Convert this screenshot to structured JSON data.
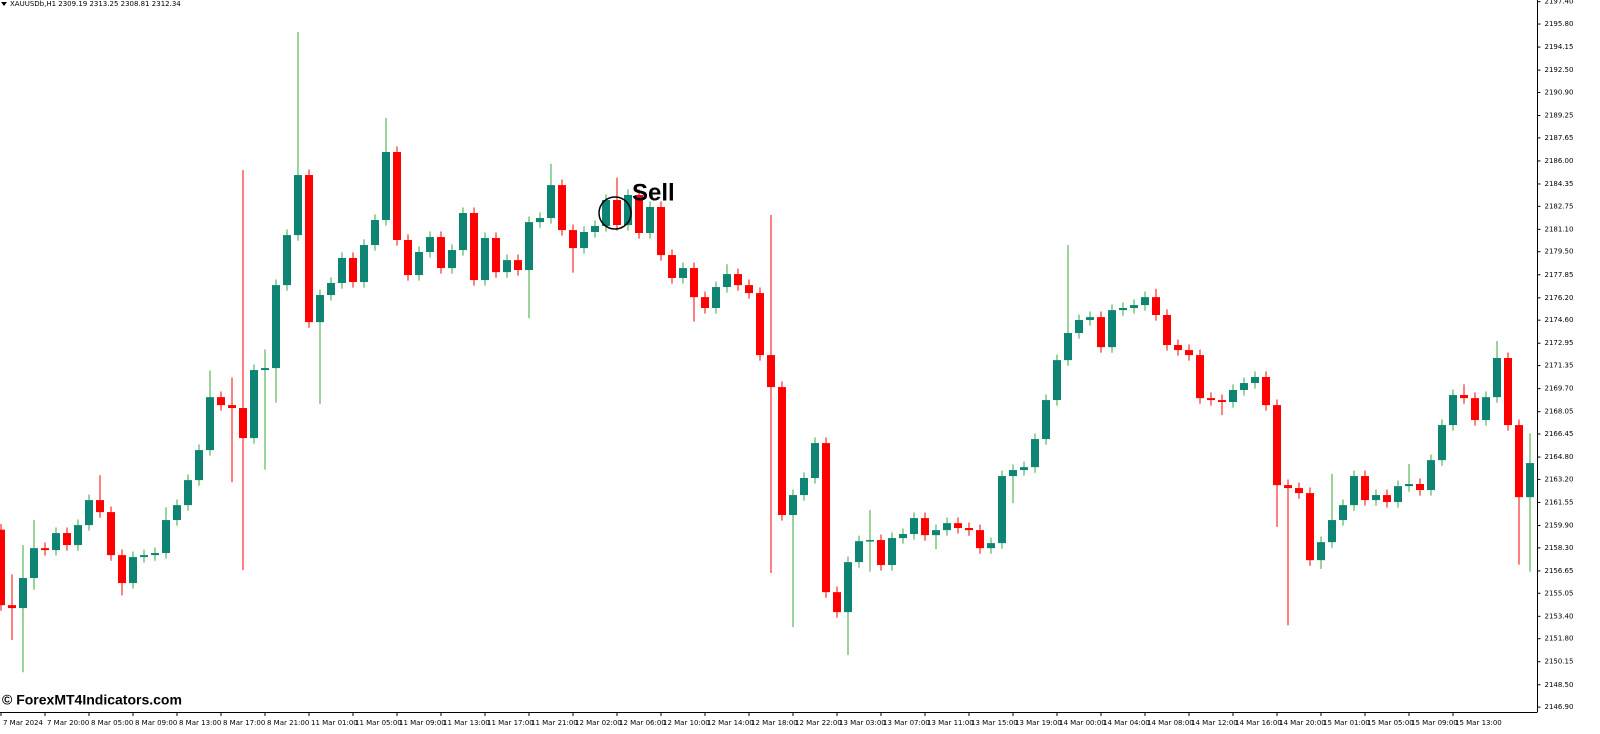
{
  "chart_data": {
    "type": "candlestick",
    "title": "XAUUSDb,H1  2309.19 2313.25 2308.81 2312.34",
    "annotation": "Sell",
    "watermark": "© ForexMT4Indicators.com",
    "up_color": "#0e8474",
    "up_wick_color": "#35a83a",
    "down_color": "#ff0000",
    "categories": [
      "7 Mar 2024",
      null,
      null,
      null,
      "7 Mar 20:00",
      null,
      null,
      null,
      "8 Mar 05:00",
      null,
      null,
      null,
      "8 Mar 09:00",
      null,
      null,
      null,
      "8 Mar 13:00",
      null,
      null,
      null,
      "8 Mar 17:00",
      null,
      null,
      null,
      "8 Mar 21:00",
      null,
      null,
      null,
      "11 Mar 01:00",
      null,
      null,
      null,
      "11 Mar 05:00",
      null,
      null,
      null,
      "11 Mar 09:00",
      null,
      null,
      null,
      "11 Mar 13:00",
      null,
      null,
      null,
      "11 Mar 17:00",
      null,
      null,
      null,
      "11 Mar 21:00",
      null,
      null,
      null,
      "12 Mar 02:00",
      null,
      null,
      null,
      "12 Mar 06:00",
      null,
      null,
      null,
      "12 Mar 10:00",
      null,
      null,
      null,
      "12 Mar 14:00",
      null,
      null,
      null,
      "12 Mar 18:00",
      null,
      null,
      null,
      "12 Mar 22:00",
      null,
      null,
      null,
      "13 Mar 03:00",
      null,
      null,
      null,
      "13 Mar 07:00",
      null,
      null,
      null,
      "13 Mar 11:00",
      null,
      null,
      null,
      "13 Mar 15:00",
      null,
      null,
      null,
      "13 Mar 19:00",
      null,
      null,
      null,
      "14 Mar 00:00",
      null,
      null,
      null,
      "14 Mar 04:00",
      null,
      null,
      null,
      "14 Mar 08:00",
      null,
      null,
      null,
      "14 Mar 12:00",
      null,
      null,
      null,
      "14 Mar 16:00",
      null,
      null,
      null,
      "14 Mar 20:00",
      null,
      null,
      null,
      "15 Mar 01:00",
      null,
      null,
      null,
      "15 Mar 05:00",
      null,
      null,
      null,
      "15 Mar 09:00",
      null,
      null,
      null,
      "15 Mar 13:00",
      null,
      null,
      null,
      null,
      null,
      null,
      null
    ],
    "open": [
      2159.6,
      2154.2,
      2153.99,
      2156.14,
      2158.28,
      2158.14,
      2159.36,
      2158.5,
      2159.93,
      2161.72,
      2160.86,
      2157.78,
      2155.78,
      2157.64,
      2157.78,
      2157.93,
      2160.29,
      2161.36,
      2163.15,
      2165.3,
      2169.09,
      2168.52,
      2168.31,
      2166.16,
      2171.03,
      2171.17,
      2177.11,
      2180.69,
      2184.99,
      2174.46,
      2176.4,
      2177.26,
      2179.05,
      2177.33,
      2179.98,
      2181.77,
      2186.64,
      2180.34,
      2177.83,
      2179.48,
      2180.55,
      2178.33,
      2179.62,
      2182.27,
      2177.47,
      2180.48,
      2178.04,
      2178.9,
      2178.19,
      2181.62,
      2181.91,
      2184.27,
      2181.05,
      2179.76,
      2180.91,
      2181.34,
      2183.2,
      2181.41,
      2183.56,
      2180.84,
      2182.7,
      2179.26,
      2177.62,
      2178.33,
      2176.25,
      2175.47,
      2176.97,
      2177.9,
      2177.11,
      2176.54,
      2172.1,
      2169.81,
      2160.65,
      2162.08,
      2163.3,
      2165.8,
      2155.13,
      2153.7,
      2157.28,
      2158.78,
      2158.86,
      2157.07,
      2159.0,
      2159.29,
      2160.43,
      2159.21,
      2159.57,
      2160.07,
      2159.72,
      2159.57,
      2158.28,
      2158.64,
      2163.44,
      2163.87,
      2164.08,
      2166.09,
      2168.88,
      2171.74,
      2173.68,
      2174.61,
      2174.82,
      2172.67,
      2175.32,
      2175.47,
      2175.68,
      2176.25,
      2174.97,
      2172.82,
      2172.46,
      2172.1,
      2169.02,
      2168.88,
      2168.74,
      2169.6,
      2170.1,
      2170.53,
      2168.52,
      2162.79,
      2162.58,
      2162.22,
      2157.42,
      2158.71,
      2160.29,
      2161.36,
      2163.44,
      2161.72,
      2162.08,
      2161.58,
      2162.72,
      2162.87,
      2162.44,
      2164.58,
      2167.09,
      2169.24,
      2169.02,
      2167.45,
      2169.09,
      2171.89,
      2167.09,
      2161.93
    ],
    "high": [
      2160.0,
      2156.4,
      2158.5,
      2160.3,
      2158.68,
      2159.76,
      2159.76,
      2160.33,
      2162.12,
      2163.5,
      2161.26,
      2158.18,
      2158.04,
      2158.18,
      2158.33,
      2161.2,
      2161.76,
      2163.55,
      2165.7,
      2171.0,
      2169.49,
      2170.5,
      2185.35,
      2171.43,
      2172.5,
      2177.51,
      2181.09,
      2195.23,
      2185.39,
      2176.8,
      2177.66,
      2179.45,
      2179.45,
      2180.38,
      2182.17,
      2189.07,
      2187.04,
      2180.74,
      2179.88,
      2180.95,
      2180.95,
      2180.02,
      2182.67,
      2182.67,
      2180.88,
      2180.88,
      2179.3,
      2179.3,
      2182.02,
      2182.31,
      2185.8,
      2184.67,
      2181.45,
      2181.31,
      2181.74,
      2183.6,
      2184.8,
      2183.96,
      2183.96,
      2183.1,
      2183.1,
      2179.66,
      2178.73,
      2178.73,
      2176.65,
      2177.37,
      2178.6,
      2178.3,
      2177.51,
      2176.94,
      2182.13,
      2170.21,
      2162.48,
      2163.7,
      2166.2,
      2166.2,
      2155.53,
      2157.68,
      2159.18,
      2161.0,
      2159.26,
      2159.4,
      2159.69,
      2160.83,
      2160.83,
      2159.97,
      2160.47,
      2160.47,
      2160.12,
      2159.97,
      2159.04,
      2163.84,
      2164.27,
      2164.48,
      2166.49,
      2169.28,
      2172.14,
      2179.98,
      2175.01,
      2175.22,
      2175.22,
      2175.72,
      2175.87,
      2176.08,
      2176.65,
      2176.85,
      2175.37,
      2173.22,
      2172.86,
      2172.5,
      2169.42,
      2169.28,
      2170.0,
      2170.5,
      2170.93,
      2170.93,
      2168.92,
      2163.19,
      2162.98,
      2162.62,
      2159.11,
      2163.6,
      2161.76,
      2163.84,
      2163.84,
      2162.48,
      2162.48,
      2163.12,
      2164.3,
      2163.27,
      2164.98,
      2167.49,
      2169.64,
      2170.0,
      2169.42,
      2169.49,
      2173.1,
      2172.29,
      2167.49,
      2166.5
    ],
    "low": [
      2153.8,
      2151.7,
      2149.4,
      2155.3,
      2157.74,
      2157.74,
      2158.1,
      2158.1,
      2159.53,
      2160.46,
      2157.38,
      2154.9,
      2155.38,
      2157.24,
      2157.38,
      2157.53,
      2159.89,
      2160.96,
      2162.75,
      2164.9,
      2168.12,
      2163.0,
      2156.71,
      2165.76,
      2163.9,
      2168.7,
      2176.71,
      2180.29,
      2174.06,
      2168.6,
      2176.0,
      2176.86,
      2176.93,
      2176.93,
      2179.58,
      2181.37,
      2179.94,
      2177.43,
      2177.43,
      2179.08,
      2177.93,
      2177.93,
      2179.22,
      2177.07,
      2177.07,
      2177.64,
      2177.64,
      2177.79,
      2174.75,
      2181.22,
      2181.51,
      2180.65,
      2178.0,
      2179.36,
      2180.51,
      2180.94,
      2181.01,
      2181.01,
      2180.44,
      2180.44,
      2178.86,
      2177.22,
      2177.22,
      2174.5,
      2175.07,
      2175.07,
      2176.57,
      2176.71,
      2176.14,
      2171.7,
      2156.5,
      2160.25,
      2152.63,
      2161.68,
      2162.9,
      2154.73,
      2153.3,
      2150.62,
      2156.88,
      2156.6,
      2156.67,
      2156.67,
      2158.6,
      2158.89,
      2158.81,
      2158.2,
      2159.17,
      2159.32,
      2159.17,
      2157.88,
      2157.88,
      2158.24,
      2161.5,
      2163.47,
      2163.68,
      2165.69,
      2168.48,
      2171.34,
      2173.28,
      2174.21,
      2172.27,
      2172.27,
      2174.92,
      2175.07,
      2175.28,
      2174.57,
      2172.42,
      2172.06,
      2171.7,
      2168.62,
      2168.48,
      2167.8,
      2168.34,
      2169.2,
      2169.7,
      2168.12,
      2159.8,
      2152.77,
      2161.82,
      2157.02,
      2156.8,
      2158.31,
      2159.89,
      2160.96,
      2161.32,
      2161.32,
      2161.18,
      2161.18,
      2162.32,
      2162.04,
      2162.04,
      2164.18,
      2166.69,
      2168.62,
      2167.05,
      2167.05,
      2168.69,
      2166.69,
      2157.1,
      2156.6
    ],
    "close": [
      2154.2,
      2153.99,
      2156.14,
      2158.28,
      2158.14,
      2159.36,
      2158.5,
      2159.93,
      2161.72,
      2160.86,
      2157.78,
      2155.78,
      2157.64,
      2157.78,
      2157.93,
      2160.29,
      2161.36,
      2163.15,
      2165.3,
      2169.09,
      2168.52,
      2168.31,
      2166.16,
      2171.03,
      2171.17,
      2177.11,
      2180.69,
      2184.99,
      2174.46,
      2176.4,
      2177.26,
      2179.05,
      2177.33,
      2179.98,
      2181.77,
      2186.64,
      2180.34,
      2177.83,
      2179.48,
      2180.55,
      2178.33,
      2179.62,
      2182.27,
      2177.47,
      2180.48,
      2178.04,
      2178.9,
      2178.19,
      2181.62,
      2181.91,
      2184.27,
      2181.05,
      2179.76,
      2180.91,
      2181.34,
      2183.2,
      2181.41,
      2183.56,
      2180.84,
      2182.7,
      2179.26,
      2177.62,
      2178.33,
      2176.25,
      2175.47,
      2176.97,
      2177.9,
      2177.11,
      2176.54,
      2172.1,
      2169.81,
      2160.65,
      2162.08,
      2163.3,
      2165.8,
      2155.13,
      2153.7,
      2157.28,
      2158.78,
      2158.86,
      2157.07,
      2159.0,
      2159.29,
      2160.43,
      2159.21,
      2159.57,
      2160.07,
      2159.72,
      2159.57,
      2158.28,
      2158.64,
      2163.44,
      2163.87,
      2164.08,
      2166.09,
      2168.88,
      2171.74,
      2173.68,
      2174.61,
      2174.82,
      2172.67,
      2175.32,
      2175.47,
      2175.68,
      2176.25,
      2174.97,
      2172.82,
      2172.46,
      2172.1,
      2169.02,
      2168.88,
      2168.74,
      2169.6,
      2170.1,
      2170.53,
      2168.52,
      2162.79,
      2162.58,
      2162.22,
      2157.42,
      2158.71,
      2160.29,
      2161.36,
      2163.44,
      2161.72,
      2162.08,
      2161.58,
      2162.72,
      2162.87,
      2162.44,
      2164.58,
      2167.09,
      2169.24,
      2169.02,
      2167.45,
      2169.09,
      2171.89,
      2167.09,
      2161.93,
      2164.37
    ],
    "ylim": [
      2146.55,
      2197.52
    ],
    "yticks": [
      {
        "value": 2197.4,
        "label": "2197.40"
      },
      {
        "value": 2195.8,
        "label": "2195.80"
      },
      2194.15,
      {
        "value": 2192.5,
        "label": "2192.50"
      },
      {
        "value": 2190.9,
        "label": "2190.90"
      },
      2189.25,
      2187.65,
      {
        "value": 2186,
        "label": "2186.00"
      },
      2184.35,
      2182.75,
      {
        "value": 2181.1,
        "label": "2181.10"
      },
      {
        "value": 2179.5,
        "label": "2179.50"
      },
      2177.85,
      {
        "value": 2176.2,
        "label": "2176.20"
      },
      {
        "value": 2174.6,
        "label": "2174.60"
      },
      2172.95,
      2171.35,
      {
        "value": 2169.7,
        "label": "2169.70"
      },
      2168.05,
      2166.45,
      {
        "value": 2164.8,
        "label": "2164.80"
      },
      {
        "value": 2163.2,
        "label": "2163.20"
      },
      2161.55,
      {
        "value": 2159.9,
        "label": "2159.90"
      },
      {
        "value": 2158.3,
        "label": "2158.30"
      },
      2156.65,
      2155.05,
      {
        "value": 2153.4,
        "label": "2153.40"
      },
      {
        "value": 2151.8,
        "label": "2151.80"
      },
      2150.15,
      {
        "value": 2148.5,
        "label": "2148.50"
      },
      {
        "value": 2146.9,
        "label": "2146.90"
      }
    ]
  }
}
